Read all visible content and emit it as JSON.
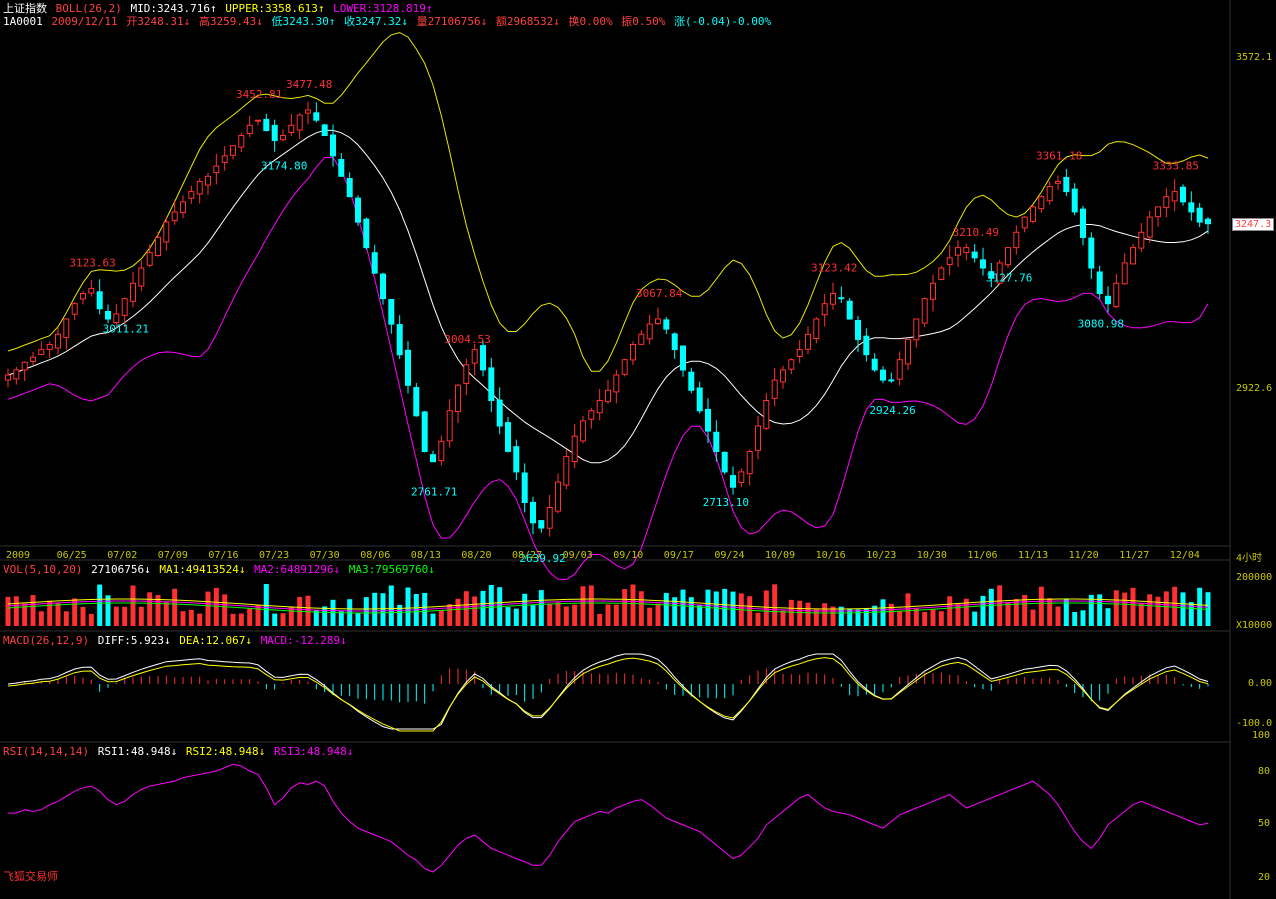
{
  "header": {
    "index_name": "上证指数",
    "boll_label": "BOLL(26,2)",
    "mid": "MID:3243.716↑",
    "upper": "UPPER:3358.613↑",
    "lower": "LOWER:3128.819↑",
    "code": "1A0001",
    "date": "2009/12/11",
    "open": "开3248.31↓",
    "high": "高3259.43↓",
    "low": "低3243.30↑",
    "close": "收3247.32↓",
    "volume": "量27106756↓",
    "amount": "额2968532↓",
    "turnover": "换0.00%",
    "amplitude": "振0.50%",
    "change": "涨(-0.04)-0.00%"
  },
  "vol_header": {
    "label": "VOL(5,10,20)",
    "value": "27106756↓",
    "ma1": "MA1:49413524↓",
    "ma2": "MA2:64891296↓",
    "ma3": "MA3:79569760↓"
  },
  "macd_header": {
    "label": "MACD(26,12,9)",
    "diff": "DIFF:5.923↓",
    "dea": "DEA:12.067↓",
    "macd": "MACD:-12.289↓"
  },
  "rsi_header": {
    "label": "RSI(14,14,14)",
    "rsi1": "RSI1:48.948↓",
    "rsi2": "RSI2:48.948↓",
    "rsi3": "RSI3:48.948↓"
  },
  "price_axis": {
    "top": "3572.1",
    "mid": "2922.6",
    "current": "3247.3"
  },
  "vol_axis": {
    "top": "200000",
    "unit": "X10000"
  },
  "macd_axis": {
    "zero": "0.00",
    "low": "-100.0"
  },
  "rsi_axis": {
    "top": "100",
    "r80": "80",
    "r50": "50",
    "r20": "20"
  },
  "x_unit": "4小时",
  "watermark": "飞狐交易师",
  "colors": {
    "up": "#ff3030",
    "down": "#00ffff",
    "upper": "#e8e800",
    "mid": "#ffffff",
    "lower": "#ff00ff",
    "label": "#c8c800"
  },
  "chart_data": {
    "type": "candlestick",
    "x_dates": [
      "2009",
      "06/25",
      "07/02",
      "07/09",
      "07/16",
      "07/23",
      "07/30",
      "08/06",
      "08/13",
      "08/20",
      "08/27",
      "09/03",
      "09/10",
      "09/17",
      "09/24",
      "10/09",
      "10/16",
      "10/23",
      "10/30",
      "11/06",
      "11/13",
      "11/20",
      "11/27",
      "12/04"
    ],
    "y_ticks": [
      3572.1,
      2922.6
    ],
    "ohlc_close_path": [
      2950,
      2960,
      2975,
      2985,
      3000,
      3010,
      3030,
      3060,
      3090,
      3110,
      3120,
      3080,
      3060,
      3070,
      3100,
      3130,
      3160,
      3190,
      3220,
      3250,
      3270,
      3290,
      3310,
      3330,
      3340,
      3360,
      3380,
      3400,
      3420,
      3440,
      3450,
      3430,
      3410,
      3420,
      3440,
      3460,
      3470,
      3450,
      3420,
      3380,
      3340,
      3300,
      3250,
      3200,
      3150,
      3100,
      3050,
      2990,
      2930,
      2870,
      2800,
      2780,
      2820,
      2880,
      2930,
      2970,
      3000,
      2960,
      2900,
      2850,
      2800,
      2760,
      2700,
      2660,
      2650,
      2690,
      2740,
      2790,
      2830,
      2860,
      2880,
      2900,
      2920,
      2950,
      2980,
      3010,
      3030,
      3050,
      3060,
      3040,
      3000,
      2960,
      2920,
      2880,
      2840,
      2800,
      2760,
      2730,
      2760,
      2800,
      2850,
      2900,
      2940,
      2960,
      2980,
      3000,
      3030,
      3060,
      3090,
      3110,
      3100,
      3060,
      3020,
      2990,
      2960,
      2940,
      2940,
      2980,
      3020,
      3060,
      3100,
      3130,
      3160,
      3180,
      3200,
      3200,
      3180,
      3160,
      3140,
      3170,
      3200,
      3230,
      3260,
      3280,
      3300,
      3320,
      3330,
      3310,
      3270,
      3220,
      3160,
      3110,
      3090,
      3130,
      3170,
      3200,
      3230,
      3260,
      3280,
      3300,
      3310,
      3290,
      3270,
      3250,
      3247
    ],
    "annotations_high": [
      {
        "label": "3123.63",
        "i": 10
      },
      {
        "label": "3452.81",
        "i": 30
      },
      {
        "label": "3477.48",
        "i": 36
      },
      {
        "label": "3004.53",
        "i": 55
      },
      {
        "label": "3067.84",
        "i": 78
      },
      {
        "label": "3123.42",
        "i": 99
      },
      {
        "label": "3210.49",
        "i": 116
      },
      {
        "label": "3361.18",
        "i": 126
      },
      {
        "label": "3333.85",
        "i": 140
      }
    ],
    "annotations_low": [
      {
        "label": "3011.21",
        "i": 14
      },
      {
        "label": "3174.80",
        "i": 33
      },
      {
        "label": "2761.71",
        "i": 51
      },
      {
        "label": "2639.92",
        "i": 64
      },
      {
        "label": "2713.10",
        "i": 86
      },
      {
        "label": "2924.26",
        "i": 106
      },
      {
        "label": "3127.76",
        "i": 120
      },
      {
        "label": "3080.98",
        "i": 131
      }
    ],
    "rsi": [
      55,
      55,
      57,
      56,
      57,
      60,
      62,
      65,
      68,
      70,
      71,
      68,
      63,
      60,
      62,
      66,
      69,
      71,
      72,
      73,
      74,
      76,
      77,
      78,
      79,
      80,
      82,
      84,
      83,
      80,
      78,
      70,
      60,
      64,
      70,
      73,
      72,
      74,
      71,
      62,
      55,
      50,
      46,
      44,
      42,
      40,
      38,
      34,
      30,
      27,
      22,
      20,
      24,
      30,
      36,
      40,
      42,
      38,
      34,
      32,
      30,
      28,
      26,
      24,
      24,
      30,
      38,
      44,
      50,
      52,
      54,
      56,
      55,
      58,
      60,
      62,
      63,
      60,
      56,
      52,
      50,
      48,
      46,
      44,
      40,
      36,
      32,
      28,
      30,
      35,
      40,
      48,
      52,
      56,
      60,
      64,
      66,
      62,
      58,
      56,
      55,
      54,
      52,
      50,
      48,
      46,
      50,
      54,
      56,
      58,
      60,
      62,
      64,
      66,
      62,
      58,
      60,
      62,
      64,
      66,
      68,
      70,
      72,
      74,
      70,
      66,
      60,
      52,
      44,
      38,
      34,
      40,
      48,
      52,
      56,
      60,
      62,
      60,
      58,
      56,
      54,
      52,
      50,
      48,
      49
    ]
  }
}
